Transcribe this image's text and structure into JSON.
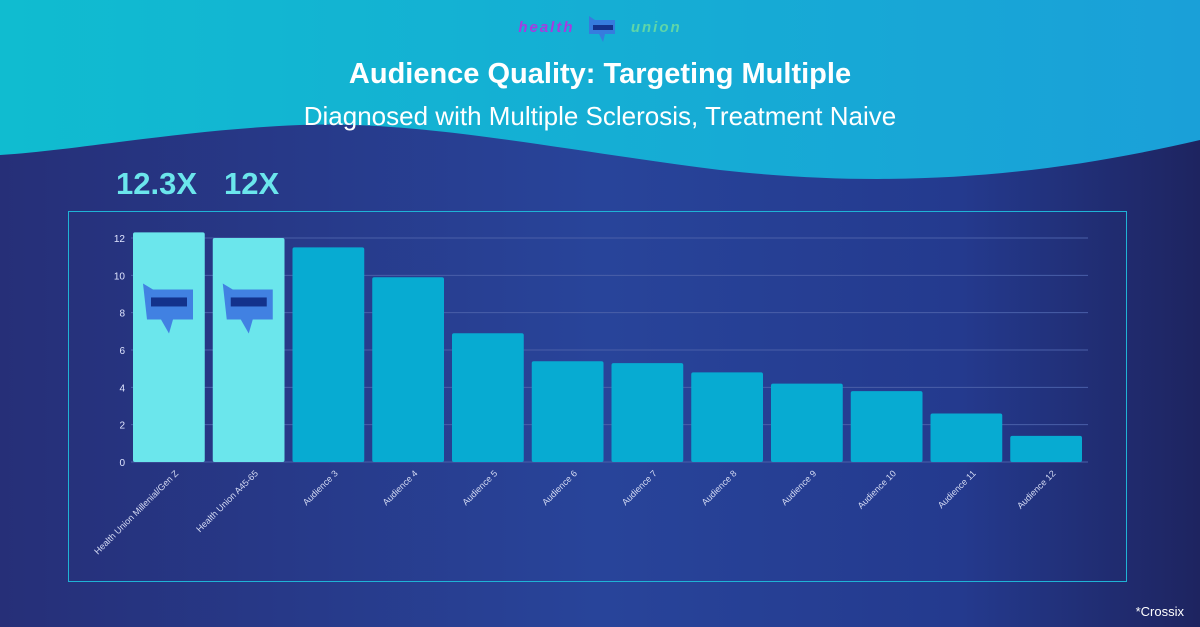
{
  "logo": {
    "left": "health",
    "right": "union"
  },
  "header": {
    "title": "Audience Quality: Targeting Multiple",
    "subtitle": "Diagnosed with Multiple Sclerosis, Treatment Naive"
  },
  "callouts": [
    "12.3X",
    "12X"
  ],
  "source": "*Crossix",
  "colors": {
    "highlight": "#6be6ec",
    "bar": "#07abd2",
    "grid": "#4a5fa8"
  },
  "chart_data": {
    "type": "bar",
    "title": "",
    "xlabel": "",
    "ylabel": "",
    "ylim": [
      0,
      12
    ],
    "yticks": [
      0,
      2,
      4,
      6,
      8,
      10,
      12
    ],
    "categories": [
      "Health Union Millenial/Gen Z",
      "Health Union A45-65",
      "Audience 3",
      "Audience 4",
      "Audience 5",
      "Audience 6",
      "Audience 7",
      "Audience 8",
      "Audience 9",
      "Audience 10",
      "Audience 11",
      "Audience 12"
    ],
    "values": [
      12.3,
      12,
      11.5,
      9.9,
      6.9,
      5.4,
      5.3,
      4.8,
      4.2,
      3.8,
      2.6,
      1.4
    ],
    "highlighted": [
      0,
      1
    ],
    "grid": true
  }
}
